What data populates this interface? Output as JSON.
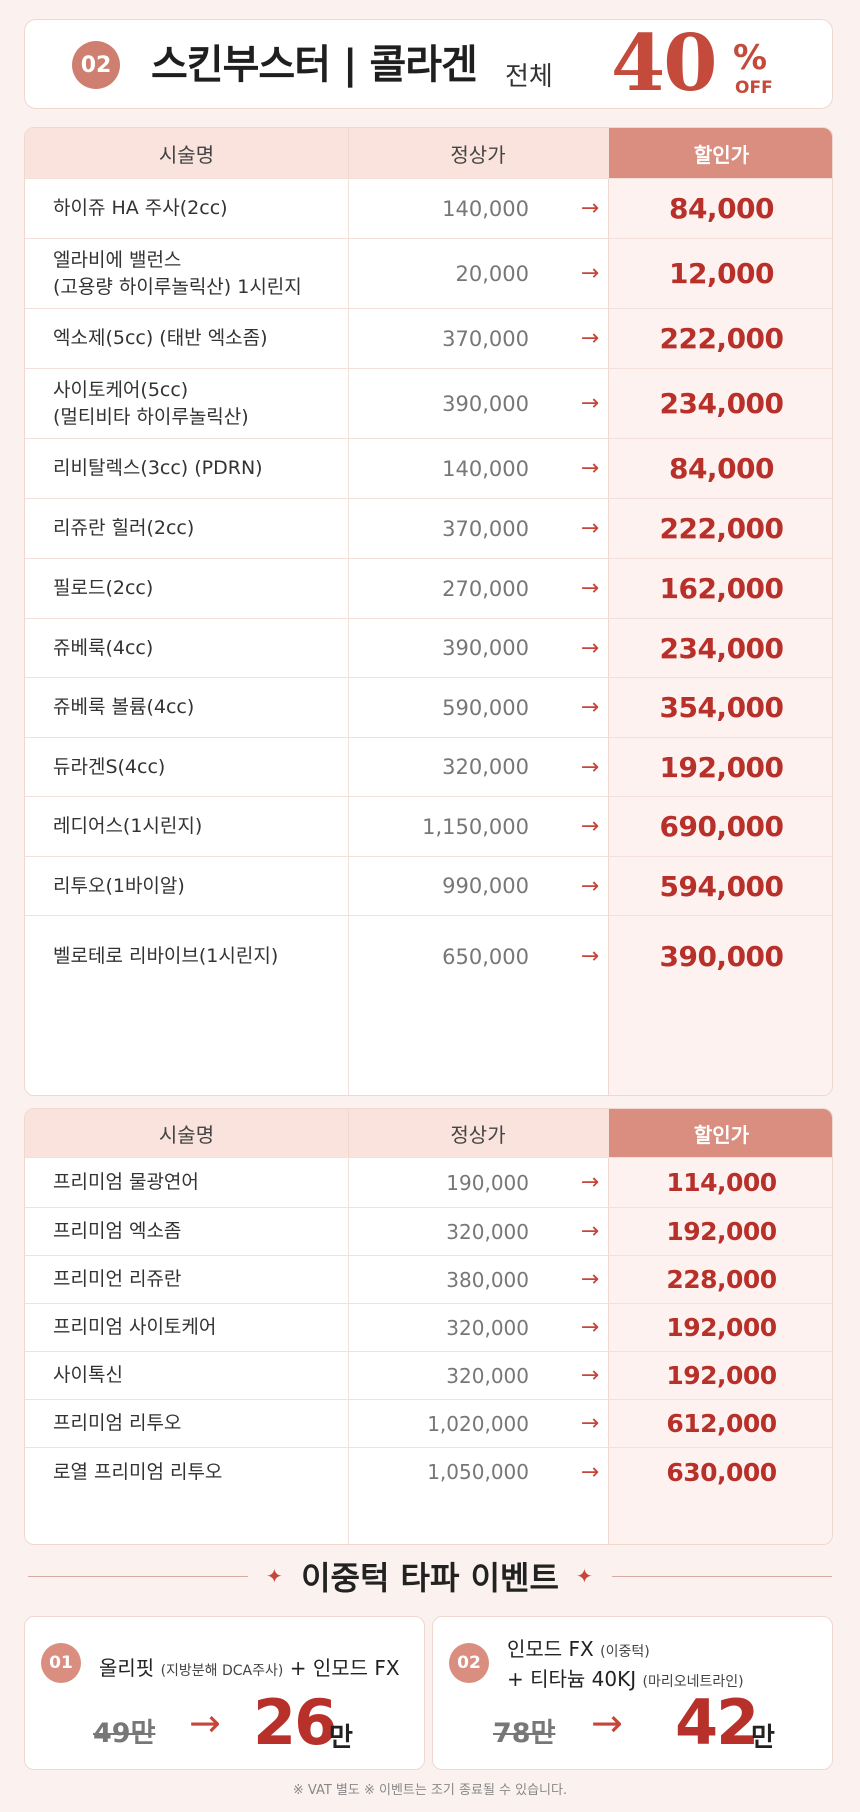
{
  "header": {
    "badge": "02",
    "title": "스킨부스터 | 콜라겐",
    "subtitle": "전체",
    "discount_number": "40",
    "discount_symbol": "%",
    "discount_off": "OFF"
  },
  "table1": {
    "columns": [
      "시술명",
      "정상가",
      "할인가"
    ],
    "rows": [
      {
        "name": [
          "하이쥬 HA 주사(2cc)"
        ],
        "regular": "140,000",
        "sale": "84,000"
      },
      {
        "name": [
          "엘라비에 밸런스",
          "(고용량 하이루놀릭산) 1시린지"
        ],
        "regular": "20,000",
        "sale": "12,000"
      },
      {
        "name": [
          "엑소제(5cc) (태반 엑소좀)"
        ],
        "regular": "370,000",
        "sale": "222,000"
      },
      {
        "name": [
          "사이토케어(5cc)",
          "(멀티비타 하이루놀릭산)"
        ],
        "regular": "390,000",
        "sale": "234,000"
      },
      {
        "name": [
          "리비탈렉스(3cc) (PDRN)"
        ],
        "regular": "140,000",
        "sale": "84,000"
      },
      {
        "name": [
          "리쥬란 힐러(2cc)"
        ],
        "regular": "370,000",
        "sale": "222,000"
      },
      {
        "name": [
          "필로드(2cc)"
        ],
        "regular": "270,000",
        "sale": "162,000"
      },
      {
        "name": [
          "쥬베룩(4cc)"
        ],
        "regular": "390,000",
        "sale": "234,000"
      },
      {
        "name": [
          "쥬베룩 볼륨(4cc)"
        ],
        "regular": "590,000",
        "sale": "354,000"
      },
      {
        "name": [
          "듀라겐S(4cc)"
        ],
        "regular": "320,000",
        "sale": "192,000"
      },
      {
        "name": [
          "레디어스(1시린지)"
        ],
        "regular": "1,150,000",
        "sale": "690,000"
      },
      {
        "name": [
          "리투오(1바이알)"
        ],
        "regular": "990,000",
        "sale": "594,000"
      },
      {
        "name": [
          "벨로테로 리바이브(1시린지)"
        ],
        "regular": "650,000",
        "sale": "390,000"
      }
    ]
  },
  "table2": {
    "columns": [
      "시술명",
      "정상가",
      "할인가"
    ],
    "rows": [
      {
        "name": [
          "프리미엄 물광연어"
        ],
        "regular": "190,000",
        "sale": "114,000"
      },
      {
        "name": [
          "프리미엄 엑소좀"
        ],
        "regular": "320,000",
        "sale": "192,000"
      },
      {
        "name": [
          "프리미언 리쥬란"
        ],
        "regular": "380,000",
        "sale": "228,000"
      },
      {
        "name": [
          "프리미엄 사이토케어"
        ],
        "regular": "320,000",
        "sale": "192,000"
      },
      {
        "name": [
          "사이톡신"
        ],
        "regular": "320,000",
        "sale": "192,000"
      },
      {
        "name": [
          "프리미엄 리투오"
        ],
        "regular": "1,020,000",
        "sale": "612,000"
      },
      {
        "name": [
          "로열 프리미엄 리투오"
        ],
        "regular": "1,050,000",
        "sale": "630,000"
      }
    ]
  },
  "arrow": "→",
  "event": {
    "title": "이중턱 타파 이벤트",
    "star": "✦",
    "cards": [
      {
        "badge": "01",
        "line1_main": "올리핏",
        "line1_small": "(지방분해 DCA주사)",
        "line1_rest": " + 인모드 FX",
        "line2_main": "",
        "line2_small": "",
        "old_price": "49만",
        "new_price": "26",
        "unit": "만"
      },
      {
        "badge": "02",
        "line1_main": "인모드 FX ",
        "line1_small": "(이중턱)",
        "line1_rest": "",
        "line2_main": "+ 티타늄 40KJ ",
        "line2_small": "(마리오네트라인)",
        "old_price": "78만",
        "new_price": "42",
        "unit": "만"
      }
    ]
  },
  "footer": "※ VAT 별도    ※ 이벤트는 조기 종료될 수 있습니다."
}
